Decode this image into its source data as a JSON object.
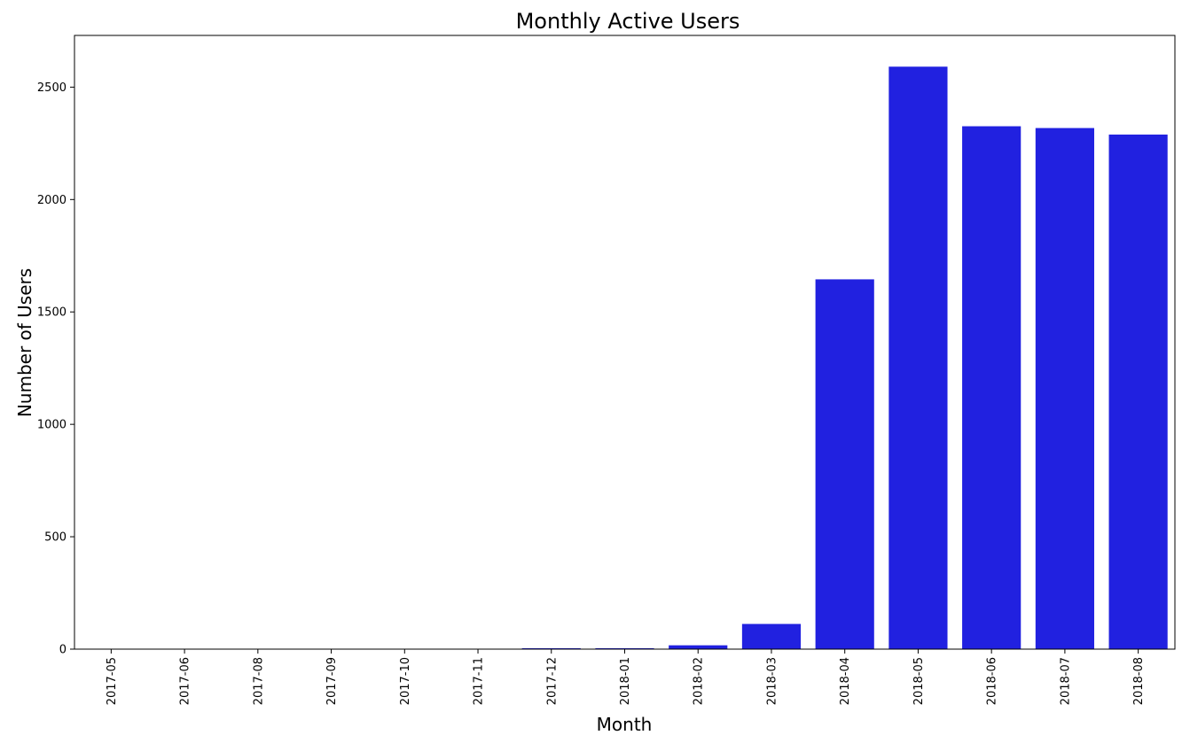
{
  "chart_data": {
    "type": "bar",
    "title": "Monthly Active Users",
    "xlabel": "Month",
    "ylabel": "Number of Users",
    "categories": [
      "2017-05",
      "2017-06",
      "2017-08",
      "2017-09",
      "2017-10",
      "2017-11",
      "2017-12",
      "2018-01",
      "2018-02",
      "2018-03",
      "2018-04",
      "2018-05",
      "2018-06",
      "2018-07",
      "2018-08"
    ],
    "values": [
      1,
      1,
      1,
      1,
      1,
      1,
      4,
      4,
      17,
      112,
      1645,
      2591,
      2326,
      2318,
      2289
    ],
    "ylim": [
      0,
      2730
    ],
    "yticks": [
      0,
      500,
      1000,
      1500,
      2000,
      2500
    ],
    "bar_color": "#2121e0",
    "grid": false,
    "legend": false
  }
}
